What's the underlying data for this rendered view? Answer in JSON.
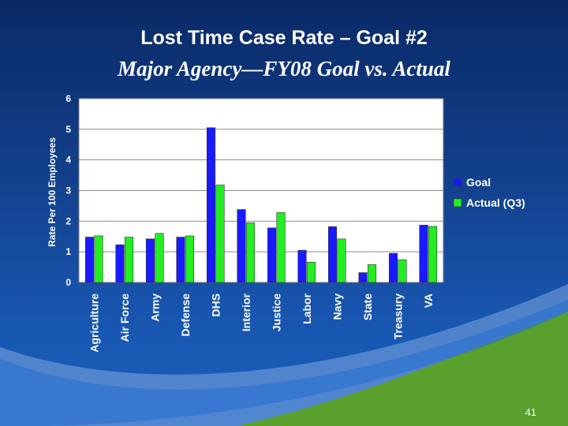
{
  "slide": {
    "title": "Lost Time Case Rate – Goal #2",
    "subtitle": "Major Agency—FY08 Goal vs. Actual",
    "page_number": "41"
  },
  "colors": {
    "goal": "#1a1aff",
    "actual": "#22ee22",
    "plot_bg": "#ffffff",
    "grid": "#8a8a8a",
    "text": "#ffffff"
  },
  "chart_data": {
    "type": "bar",
    "categories": [
      "Agriculture",
      "Air Force",
      "Army",
      "Defense",
      "DHS",
      "Interior",
      "Justice",
      "Labor",
      "Navy",
      "State",
      "Treasury",
      "VA"
    ],
    "series": [
      {
        "name": "Goal",
        "values": [
          1.48,
          1.23,
          1.42,
          1.48,
          5.05,
          2.38,
          1.78,
          1.05,
          1.82,
          0.32,
          0.95,
          1.87
        ]
      },
      {
        "name": "Actual (Q3)",
        "values": [
          1.52,
          1.48,
          1.6,
          1.52,
          3.18,
          1.95,
          2.28,
          0.66,
          1.42,
          0.58,
          0.74,
          1.83
        ]
      }
    ],
    "ylabel": "Rate Per 100 Employees",
    "xlabel": "",
    "ylim": [
      0,
      6
    ],
    "yticks": [
      "0",
      "1",
      "2",
      "3",
      "4",
      "5",
      "6"
    ],
    "grid": true,
    "legend_position": "right"
  }
}
